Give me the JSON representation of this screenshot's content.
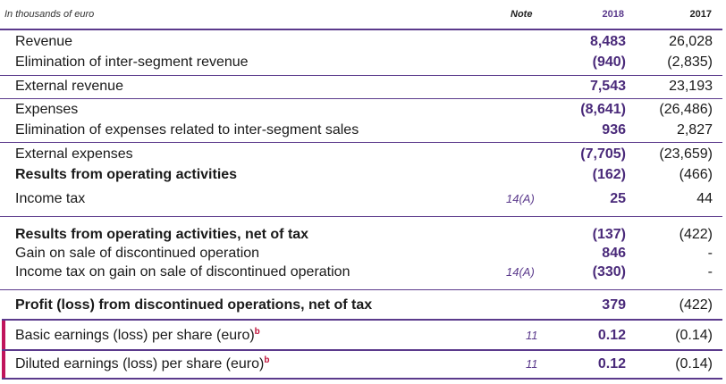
{
  "header": {
    "caption": "In thousands of euro",
    "note": "Note",
    "year_current": "2018",
    "year_prior": "2017"
  },
  "rows": [
    {
      "label": "Revenue",
      "note": "",
      "v2018": "8,483",
      "v2017": "26,028"
    },
    {
      "label": "Elimination of inter-segment revenue",
      "note": "",
      "v2018": "(940)",
      "v2017": "(2,835)"
    },
    {
      "label": "External revenue",
      "note": "",
      "v2018": "7,543",
      "v2017": "23,193"
    },
    {
      "label": "Expenses",
      "note": "",
      "v2018": "(8,641)",
      "v2017": "(26,486)"
    },
    {
      "label": "Elimination of expenses related to inter-segment sales",
      "note": "",
      "v2018": "936",
      "v2017": "2,827"
    },
    {
      "label": "External expenses",
      "note": "",
      "v2018": "(7,705)",
      "v2017": "(23,659)"
    },
    {
      "label": "Results from operating activities",
      "note": "",
      "v2018": "(162)",
      "v2017": "(466)"
    },
    {
      "label": "Income tax",
      "note": "14(A)",
      "v2018": "25",
      "v2017": "44"
    },
    {
      "label": "Results from operating activities, net of tax",
      "note": "",
      "v2018": "(137)",
      "v2017": "(422)"
    },
    {
      "label": "Gain on sale of discontinued operation",
      "note": "",
      "v2018": "846",
      "v2017": "-"
    },
    {
      "label": "Income tax on gain on sale of discontinued operation",
      "note": "14(A)",
      "v2018": "(330)",
      "v2017": "-"
    },
    {
      "label": "Profit (loss) from discontinued operations, net of tax",
      "note": "",
      "v2018": "379",
      "v2017": "(422)"
    },
    {
      "label": "Basic earnings (loss) per share (euro)",
      "footnote": "b",
      "note": "11",
      "v2018": "0.12",
      "v2017": "(0.14)"
    },
    {
      "label": "Diluted earnings (loss) per share (euro)",
      "footnote": "b",
      "note": "11",
      "v2018": "0.12",
      "v2017": "(0.14)"
    }
  ]
}
